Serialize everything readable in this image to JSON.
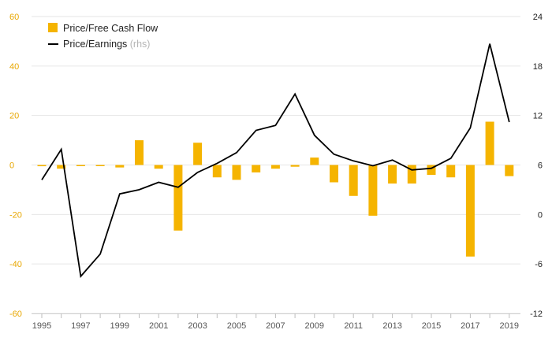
{
  "chart_data": {
    "type": "bar",
    "title": "",
    "x": [
      1995,
      1996,
      1997,
      1998,
      1999,
      2000,
      2001,
      2002,
      2003,
      2004,
      2005,
      2006,
      2007,
      2008,
      2009,
      2010,
      2011,
      2012,
      2013,
      2014,
      2015,
      2016,
      2017,
      2018,
      2019
    ],
    "x_tick_labels": [
      "1995",
      "1997",
      "1999",
      "2001",
      "2003",
      "2005",
      "2007",
      "2009",
      "2011",
      "2013",
      "2015",
      "2017",
      "2019"
    ],
    "series": [
      {
        "name": "Price/Free Cash Flow",
        "kind": "bar",
        "axis": "left",
        "color": "#f5b400",
        "values": [
          -0.5,
          -1.5,
          -0.3,
          -0.3,
          -1,
          10,
          -1.5,
          -26.5,
          9,
          -5,
          -6,
          -3,
          -1.5,
          -0.7,
          3,
          -7,
          -12.5,
          -20.5,
          -7.5,
          -7.5,
          -4,
          -5,
          -37,
          17.5,
          -4.5
        ]
      },
      {
        "name": "Price/Earnings",
        "kind": "line",
        "axis": "right",
        "color": "#000000",
        "values": [
          4.2,
          7.9,
          -7.5,
          -4.8,
          2.5,
          3.0,
          3.9,
          3.3,
          5.1,
          6.2,
          7.5,
          10.2,
          10.8,
          14.6,
          9.6,
          7.3,
          6.5,
          5.9,
          6.6,
          5.4,
          5.6,
          6.8,
          10.5,
          20.7,
          11.2
        ]
      }
    ],
    "legend": {
      "position": "top-left",
      "items": [
        {
          "label": "Price/Free Cash Flow",
          "suffix": ""
        },
        {
          "label": "Price/Earnings",
          "suffix": " (rhs)"
        }
      ]
    },
    "y_left": {
      "ticks": [
        "60",
        "40",
        "20",
        "0",
        "-20",
        "-40",
        "-60"
      ],
      "ylim": [
        -60,
        60
      ],
      "color": "#e8a700"
    },
    "y_right": {
      "ticks": [
        "24",
        "18",
        "12",
        "6",
        "0",
        "-6",
        "-12"
      ],
      "ylim": [
        -12,
        24
      ]
    },
    "grid": true,
    "xlabel": "",
    "ylabel": ""
  }
}
